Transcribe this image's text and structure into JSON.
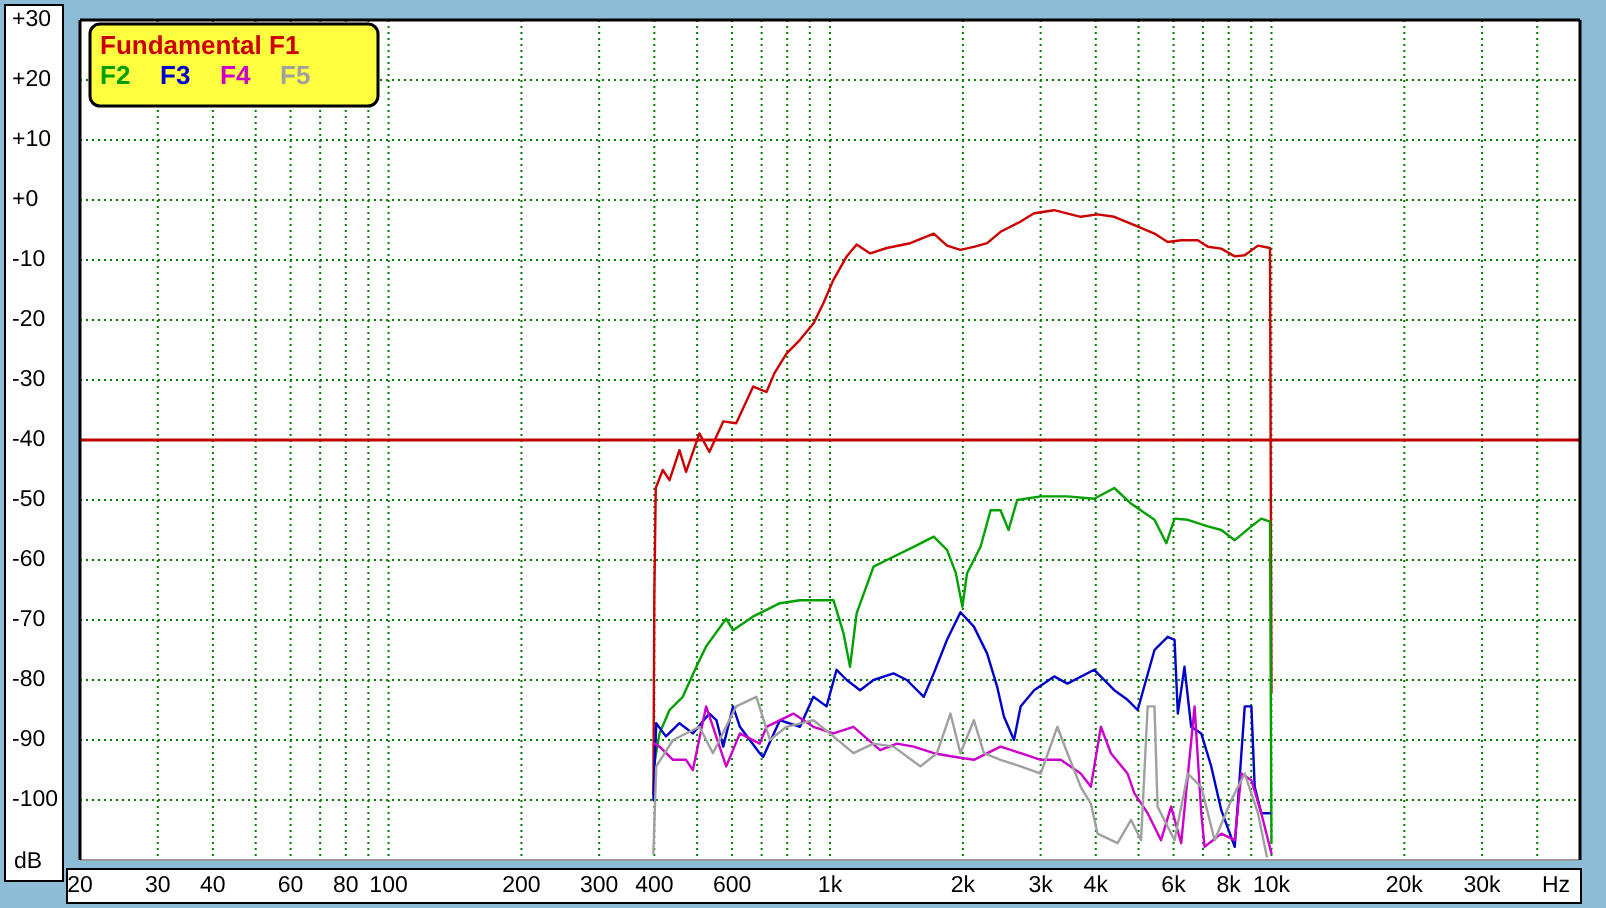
{
  "chart_data": {
    "type": "line",
    "xlabel": "Hz",
    "ylabel": "dB",
    "log": "x",
    "grid": true,
    "legend": "top left",
    "xlim": [
      20,
      50000
    ],
    "ylim": [
      -110,
      30
    ],
    "xticks": [
      20,
      30,
      40,
      {
        "value": 50,
        "label": null
      },
      60,
      {
        "value": 70,
        "label": null
      },
      80,
      {
        "value": 90,
        "label": null
      },
      100,
      200,
      300,
      400,
      {
        "value": 500,
        "label": null
      },
      600,
      {
        "value": 700,
        "label": null
      },
      {
        "value": 800,
        "label": null
      },
      {
        "value": 900,
        "label": null
      },
      {
        "value": 1000,
        "label": "1k"
      },
      {
        "value": 2000,
        "label": "2k"
      },
      {
        "value": 3000,
        "label": "3k"
      },
      {
        "value": 4000,
        "label": "4k"
      },
      {
        "value": 5000,
        "label": null
      },
      {
        "value": 6000,
        "label": "6k"
      },
      {
        "value": 7000,
        "label": null
      },
      {
        "value": 8000,
        "label": "8k"
      },
      {
        "value": 9000,
        "label": null
      },
      {
        "value": 10000,
        "label": "10k"
      },
      {
        "value": 20000,
        "label": "20k"
      },
      {
        "value": 30000,
        "label": "30k"
      },
      {
        "value": 40000,
        "label": null
      }
    ],
    "yticks": [
      {
        "value": 30,
        "label": "+30"
      },
      {
        "value": 20,
        "label": "+20"
      },
      {
        "value": 10,
        "label": "+10"
      },
      {
        "value": 0,
        "label": "+0"
      },
      -10,
      -20,
      -30,
      -40,
      -50,
      -60,
      -70,
      -80,
      -90,
      -100
    ],
    "ref_lines": [
      {
        "axis": "y",
        "value": -40,
        "color": "#c00000"
      }
    ],
    "series": [
      {
        "name": "Fundamental F1",
        "color": "#cc0000",
        "x": [
          398,
          400,
          403,
          418,
          433,
          456,
          472,
          506,
          533,
          573,
          613,
          670,
          718,
          748,
          797,
          855,
          917,
          966,
          1018,
          1091,
          1149,
          1233,
          1345,
          1520,
          1718,
          1841,
          1975,
          2118,
          2270,
          2434,
          2703,
          2900,
          3219,
          3698,
          4036,
          4406,
          4893,
          5433,
          5821,
          6245,
          6808,
          7178,
          7698,
          8257,
          8700,
          9322,
          9926,
          10000
        ],
        "values": [
          -99,
          -66,
          -48,
          -45,
          -46.7,
          -41.7,
          -45.3,
          -38.9,
          -42,
          -36.9,
          -37.2,
          -31.1,
          -32,
          -28.9,
          -25.6,
          -23.3,
          -20.6,
          -17.2,
          -13.3,
          -9.4,
          -7.4,
          -8.9,
          -8,
          -7.2,
          -5.6,
          -7.6,
          -8.3,
          -7.8,
          -7.2,
          -5.3,
          -3.6,
          -2.2,
          -1.7,
          -2.8,
          -2.4,
          -2.8,
          -4.2,
          -5.6,
          -7,
          -6.7,
          -6.7,
          -7.8,
          -8.1,
          -9.4,
          -9.2,
          -7.6,
          -8,
          -82
        ]
      },
      {
        "name": "F2",
        "color": "#00a000",
        "x": [
          400,
          411,
          433,
          464,
          498,
          524,
          582,
          603,
          670,
          770,
          855,
          1018,
          1073,
          1110,
          1149,
          1255,
          1345,
          1547,
          1718,
          1841,
          1928,
          1995,
          2044,
          2193,
          2311,
          2434,
          2538,
          2655,
          3001,
          3450,
          3968,
          4406,
          4807,
          5433,
          5781,
          6033,
          6465,
          7178,
          7698,
          8257,
          9006,
          9485,
          9926,
          10000
        ],
        "values": [
          -93.9,
          -88.9,
          -85,
          -82.8,
          -77.8,
          -74.4,
          -69.8,
          -71.7,
          -69.4,
          -67.2,
          -66.7,
          -66.7,
          -72.2,
          -77.8,
          -68.9,
          -61.1,
          -60,
          -57.8,
          -56.1,
          -58.3,
          -62.2,
          -67.8,
          -62.2,
          -57.8,
          -51.7,
          -51.7,
          -55,
          -50,
          -49.4,
          -49.4,
          -49.8,
          -48,
          -50.6,
          -53.3,
          -57.2,
          -53.1,
          -53.3,
          -54.4,
          -55,
          -56.7,
          -54.4,
          -53.1,
          -53.6,
          -107
        ]
      },
      {
        "name": "F3",
        "color": "#0000cc",
        "x": [
          398,
          404,
          425,
          456,
          489,
          533,
          553,
          573,
          603,
          625,
          693,
          706,
          770,
          855,
          917,
          982,
          1035,
          1091,
          1170,
          1255,
          1393,
          1493,
          1631,
          1718,
          1841,
          1975,
          2118,
          2270,
          2391,
          2477,
          2611,
          2703,
          2900,
          3219,
          3450,
          3968,
          4406,
          4721,
          4977,
          5433,
          5821,
          6033,
          6137,
          6353,
          6579,
          6934,
          7305,
          7698,
          8257,
          8700,
          9006,
          9164,
          9485,
          9926
        ],
        "values": [
          -100,
          -87.2,
          -89.4,
          -87.2,
          -88.9,
          -85.6,
          -86.7,
          -91.1,
          -84.4,
          -87.8,
          -92.2,
          -92.8,
          -86.7,
          -87.8,
          -82.8,
          -84.4,
          -78.3,
          -80,
          -81.7,
          -80,
          -78.9,
          -80,
          -82.8,
          -78.9,
          -73.3,
          -68.7,
          -71.1,
          -75.6,
          -81.1,
          -86.1,
          -90,
          -84.4,
          -81.7,
          -79.4,
          -80.6,
          -78.3,
          -81.7,
          -83.3,
          -85,
          -75,
          -72.8,
          -73.3,
          -85.6,
          -77.8,
          -87.8,
          -88.9,
          -94.4,
          -101.7,
          -107.8,
          -84.4,
          -84.4,
          -97.8,
          -102.2,
          -102.2
        ]
      },
      {
        "name": "F4",
        "color": "#cc00cc",
        "x": [
          400,
          411,
          441,
          472,
          489,
          524,
          582,
          625,
          693,
          718,
          826,
          917,
          1018,
          1130,
          1299,
          1417,
          1547,
          1718,
          1908,
          2118,
          2434,
          2703,
          3001,
          3332,
          3698,
          3899,
          4108,
          4328,
          4721,
          4893,
          5243,
          5623,
          5925,
          6245,
          6698,
          6934,
          7057,
          7698,
          8257,
          8547,
          9006,
          9485,
          10000
        ],
        "values": [
          -90.6,
          -91.1,
          -93.3,
          -93.3,
          -95,
          -84.4,
          -94.4,
          -88.9,
          -90.6,
          -87.8,
          -85.6,
          -87.8,
          -88.9,
          -87.8,
          -91.7,
          -90.6,
          -91.1,
          -92.2,
          -92.8,
          -93.3,
          -91.1,
          -92.2,
          -93.3,
          -93.3,
          -95.6,
          -97.8,
          -87.8,
          -92.2,
          -95.6,
          -98.9,
          -102.2,
          -106.7,
          -101.1,
          -107.2,
          -84.4,
          -102.2,
          -107.8,
          -105.6,
          -106.7,
          -95.6,
          -96.7,
          -102.2,
          -108.9
        ]
      },
      {
        "name": "F5",
        "color": "#a0a0a0",
        "x": [
          398,
          404,
          441,
          506,
          543,
          613,
          681,
          731,
          797,
          917,
          1018,
          1130,
          1255,
          1393,
          1602,
          1747,
          1874,
          1975,
          2118,
          2232,
          2434,
          2703,
          3001,
          3273,
          3450,
          3698,
          3899,
          4036,
          4481,
          4807,
          5065,
          5243,
          5433,
          5521,
          6033,
          6465,
          6934,
          7437,
          8110,
          8700,
          9322,
          9761
        ],
        "values": [
          -109,
          -94.4,
          -90,
          -87.8,
          -92.2,
          -84.4,
          -82.8,
          -90,
          -87.8,
          -86.7,
          -89.4,
          -92.2,
          -90.6,
          -91.1,
          -94.4,
          -92.2,
          -85.6,
          -92.2,
          -86.7,
          -92.2,
          -93.3,
          -94.4,
          -95.6,
          -87.8,
          -92.2,
          -97.8,
          -100.6,
          -105.6,
          -107.2,
          -103.3,
          -106.7,
          -84.4,
          -84.4,
          -101.1,
          -106.7,
          -95.6,
          -97.8,
          -106.7,
          -100,
          -95.6,
          -102.2,
          -109.4
        ]
      }
    ]
  }
}
